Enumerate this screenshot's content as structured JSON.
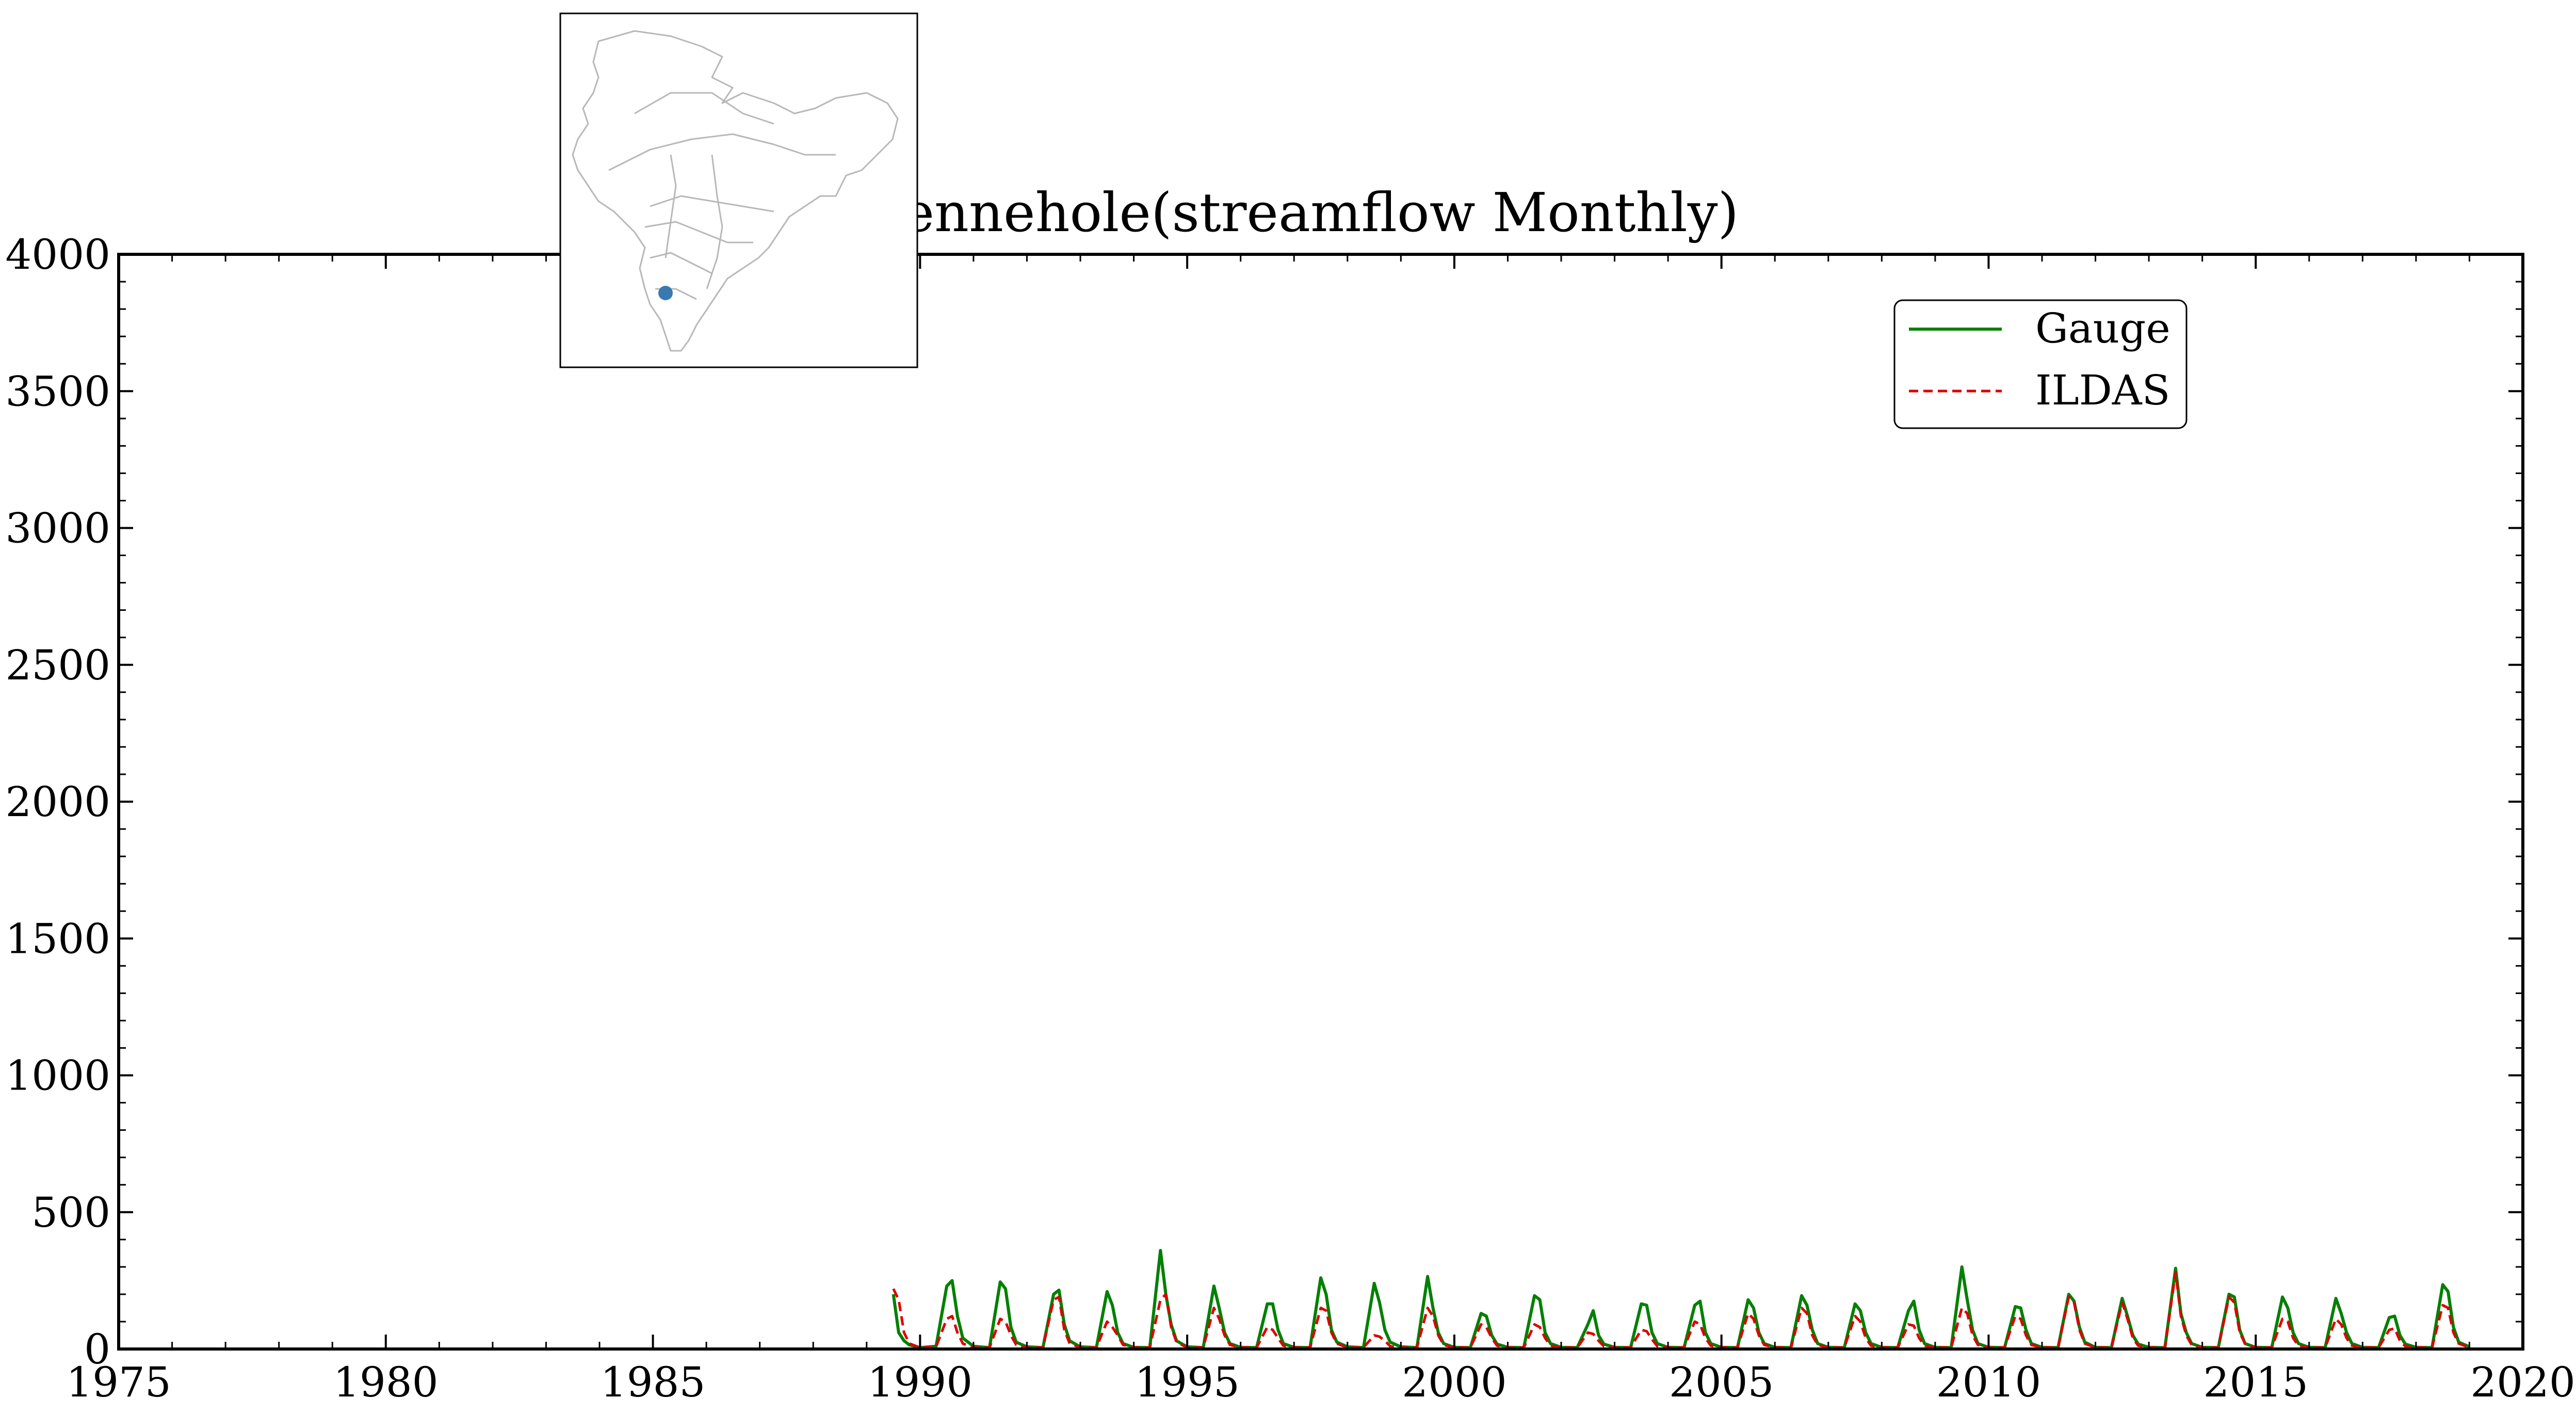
{
  "chart_data": {
    "type": "line",
    "title": "Yennehole(streamflow Monthly)",
    "xlabel": "",
    "ylabel": "",
    "xlim": [
      1975,
      2020
    ],
    "ylim": [
      0,
      4000
    ],
    "x_ticks": [
      "1975",
      "1980",
      "1985",
      "1990",
      "1995",
      "2000",
      "2005",
      "2010",
      "2015",
      "2020"
    ],
    "y_ticks": [
      "0",
      "500",
      "1000",
      "1500",
      "2000",
      "2500",
      "3000",
      "3500",
      "4000"
    ],
    "legend_position": "top-right",
    "series": [
      {
        "name": "Gauge",
        "color": "#008000",
        "style": "solid",
        "x": [
          1989.5,
          1989.6,
          1989.7,
          1989.8,
          1990.0,
          1990.3,
          1990.5,
          1990.6,
          1990.7,
          1990.8,
          1991.0,
          1991.3,
          1991.5,
          1991.6,
          1991.7,
          1991.8,
          1992.0,
          1992.3,
          1992.5,
          1992.6,
          1992.7,
          1992.8,
          1993.0,
          1993.3,
          1993.5,
          1993.6,
          1993.7,
          1993.8,
          1994.0,
          1994.3,
          1994.5,
          1994.6,
          1994.7,
          1994.8,
          1995.0,
          1995.3,
          1995.5,
          1995.6,
          1995.7,
          1995.8,
          1996.0,
          1996.3,
          1996.5,
          1996.6,
          1996.7,
          1996.8,
          1997.0,
          1997.3,
          1997.5,
          1997.6,
          1997.7,
          1997.8,
          1998.0,
          1998.3,
          1998.5,
          1998.6,
          1998.7,
          1998.8,
          1999.0,
          1999.3,
          1999.5,
          1999.6,
          1999.7,
          1999.8,
          2000.0,
          2000.3,
          2000.5,
          2000.6,
          2000.7,
          2000.8,
          2001.0,
          2001.3,
          2001.5,
          2001.6,
          2001.7,
          2001.8,
          2002.0,
          2002.3,
          2002.5,
          2002.6,
          2002.7,
          2002.8,
          2003.0,
          2003.3,
          2003.5,
          2003.6,
          2003.7,
          2003.8,
          2004.0,
          2004.3,
          2004.5,
          2004.6,
          2004.7,
          2004.8,
          2005.0,
          2005.3,
          2005.5,
          2005.6,
          2005.7,
          2005.8,
          2006.0,
          2006.3,
          2006.5,
          2006.6,
          2006.7,
          2006.8,
          2007.0,
          2007.3,
          2007.5,
          2007.6,
          2007.7,
          2007.8,
          2008.0,
          2008.3,
          2008.5,
          2008.6,
          2008.7,
          2008.8,
          2009.0,
          2009.3,
          2009.5,
          2009.6,
          2009.7,
          2009.8,
          2010.0,
          2010.3,
          2010.5,
          2010.6,
          2010.7,
          2010.8,
          2011.0,
          2011.3,
          2011.5,
          2011.6,
          2011.7,
          2011.8,
          2012.0,
          2012.3,
          2012.5,
          2012.6,
          2012.7,
          2012.8,
          2013.0,
          2013.3,
          2013.5,
          2013.6,
          2013.7,
          2013.8,
          2014.0,
          2014.3,
          2014.5,
          2014.6,
          2014.7,
          2014.8,
          2015.0,
          2015.3,
          2015.5,
          2015.6,
          2015.7,
          2015.8,
          2016.0,
          2016.3,
          2016.5,
          2016.6,
          2016.7,
          2016.8,
          2017.0,
          2017.3,
          2017.5,
          2017.6,
          2017.7,
          2017.8,
          2018.0,
          2018.3,
          2018.5,
          2018.6,
          2018.7,
          2018.8,
          2019.0
        ],
        "values": [
          200,
          60,
          30,
          15,
          5,
          10,
          230,
          250,
          120,
          40,
          10,
          5,
          245,
          220,
          80,
          25,
          8,
          5,
          200,
          215,
          90,
          30,
          8,
          5,
          210,
          160,
          60,
          20,
          6,
          5,
          360,
          200,
          90,
          30,
          8,
          5,
          230,
          150,
          60,
          20,
          6,
          5,
          165,
          165,
          70,
          20,
          6,
          5,
          260,
          200,
          70,
          25,
          8,
          5,
          240,
          170,
          70,
          25,
          8,
          5,
          265,
          150,
          60,
          20,
          6,
          5,
          130,
          120,
          50,
          18,
          6,
          5,
          195,
          180,
          60,
          20,
          6,
          5,
          90,
          140,
          50,
          18,
          6,
          5,
          165,
          160,
          60,
          20,
          6,
          5,
          160,
          175,
          60,
          20,
          6,
          5,
          180,
          150,
          60,
          20,
          6,
          5,
          195,
          160,
          70,
          20,
          6,
          5,
          165,
          140,
          60,
          20,
          6,
          5,
          140,
          175,
          70,
          20,
          6,
          5,
          300,
          180,
          70,
          20,
          6,
          5,
          155,
          150,
          70,
          20,
          6,
          5,
          200,
          175,
          80,
          25,
          6,
          5,
          185,
          120,
          50,
          18,
          6,
          5,
          295,
          130,
          60,
          20,
          6,
          5,
          200,
          190,
          70,
          20,
          6,
          5,
          190,
          150,
          60,
          20,
          6,
          5,
          185,
          130,
          60,
          20,
          6,
          5,
          115,
          120,
          50,
          18,
          6,
          5,
          235,
          210,
          80,
          25,
          8
        ]
      },
      {
        "name": "ILDAS",
        "color": "#dd0000",
        "style": "dashed",
        "x": [
          1989.5,
          1989.6,
          1989.7,
          1989.8,
          1990.0,
          1990.3,
          1990.5,
          1990.6,
          1990.7,
          1990.8,
          1991.0,
          1991.3,
          1991.5,
          1991.6,
          1991.7,
          1991.8,
          1992.0,
          1992.3,
          1992.5,
          1992.6,
          1992.7,
          1992.8,
          1993.0,
          1993.3,
          1993.5,
          1993.6,
          1993.7,
          1993.8,
          1994.0,
          1994.3,
          1994.5,
          1994.6,
          1994.7,
          1994.8,
          1995.0,
          1995.3,
          1995.5,
          1995.6,
          1995.7,
          1995.8,
          1996.0,
          1996.3,
          1996.5,
          1996.6,
          1996.7,
          1996.8,
          1997.0,
          1997.3,
          1997.5,
          1997.6,
          1997.7,
          1997.8,
          1998.0,
          1998.3,
          1998.5,
          1998.6,
          1998.7,
          1998.8,
          1999.0,
          1999.3,
          1999.5,
          1999.6,
          1999.7,
          1999.8,
          2000.0,
          2000.3,
          2000.5,
          2000.6,
          2000.7,
          2000.8,
          2001.0,
          2001.3,
          2001.5,
          2001.6,
          2001.7,
          2001.8,
          2002.0,
          2002.3,
          2002.5,
          2002.6,
          2002.7,
          2002.8,
          2003.0,
          2003.3,
          2003.5,
          2003.6,
          2003.7,
          2003.8,
          2004.0,
          2004.3,
          2004.5,
          2004.6,
          2004.7,
          2004.8,
          2005.0,
          2005.3,
          2005.5,
          2005.6,
          2005.7,
          2005.8,
          2006.0,
          2006.3,
          2006.5,
          2006.6,
          2006.7,
          2006.8,
          2007.0,
          2007.3,
          2007.5,
          2007.6,
          2007.7,
          2007.8,
          2008.0,
          2008.3,
          2008.5,
          2008.6,
          2008.7,
          2008.8,
          2009.0,
          2009.3,
          2009.5,
          2009.6,
          2009.7,
          2009.8,
          2010.0,
          2010.3,
          2010.5,
          2010.6,
          2010.7,
          2010.8,
          2011.0,
          2011.3,
          2011.5,
          2011.6,
          2011.7,
          2011.8,
          2012.0,
          2012.3,
          2012.5,
          2012.6,
          2012.7,
          2012.8,
          2013.0,
          2013.3,
          2013.5,
          2013.6,
          2013.7,
          2013.8,
          2014.0,
          2014.3,
          2014.5,
          2014.6,
          2014.7,
          2014.8,
          2015.0,
          2015.3,
          2015.5,
          2015.6,
          2015.7,
          2015.8,
          2016.0,
          2016.3,
          2016.5,
          2016.6,
          2016.7,
          2016.8,
          2017.0,
          2017.3,
          2017.5,
          2017.6,
          2017.7,
          2017.8,
          2018.0,
          2018.3,
          2018.5,
          2018.6,
          2018.7,
          2018.8,
          2019.0
        ],
        "values": [
          220,
          180,
          60,
          20,
          5,
          8,
          110,
          120,
          60,
          20,
          5,
          5,
          110,
          100,
          50,
          15,
          5,
          5,
          180,
          190,
          70,
          20,
          5,
          5,
          100,
          80,
          50,
          15,
          5,
          5,
          180,
          200,
          80,
          25,
          5,
          5,
          150,
          110,
          50,
          15,
          5,
          5,
          80,
          70,
          40,
          12,
          5,
          5,
          150,
          140,
          60,
          20,
          5,
          5,
          50,
          45,
          30,
          10,
          5,
          5,
          150,
          120,
          50,
          15,
          5,
          5,
          90,
          80,
          40,
          12,
          5,
          5,
          90,
          80,
          40,
          12,
          5,
          5,
          60,
          55,
          30,
          10,
          5,
          5,
          70,
          65,
          35,
          10,
          5,
          5,
          100,
          90,
          40,
          12,
          5,
          5,
          130,
          110,
          50,
          15,
          5,
          5,
          150,
          130,
          50,
          15,
          5,
          5,
          120,
          100,
          40,
          12,
          5,
          5,
          90,
          85,
          40,
          12,
          5,
          5,
          150,
          130,
          50,
          15,
          5,
          5,
          120,
          110,
          50,
          15,
          5,
          5,
          190,
          170,
          70,
          20,
          5,
          5,
          170,
          110,
          40,
          12,
          5,
          5,
          280,
          120,
          50,
          15,
          5,
          5,
          190,
          170,
          60,
          20,
          5,
          5,
          110,
          100,
          40,
          12,
          5,
          5,
          110,
          90,
          40,
          12,
          5,
          5,
          70,
          75,
          30,
          10,
          5,
          5,
          160,
          150,
          60,
          20,
          5
        ]
      }
    ]
  },
  "inset_map": {
    "icon": "south-asia-basin-map-icon",
    "marker_color": "#3a78b0"
  }
}
